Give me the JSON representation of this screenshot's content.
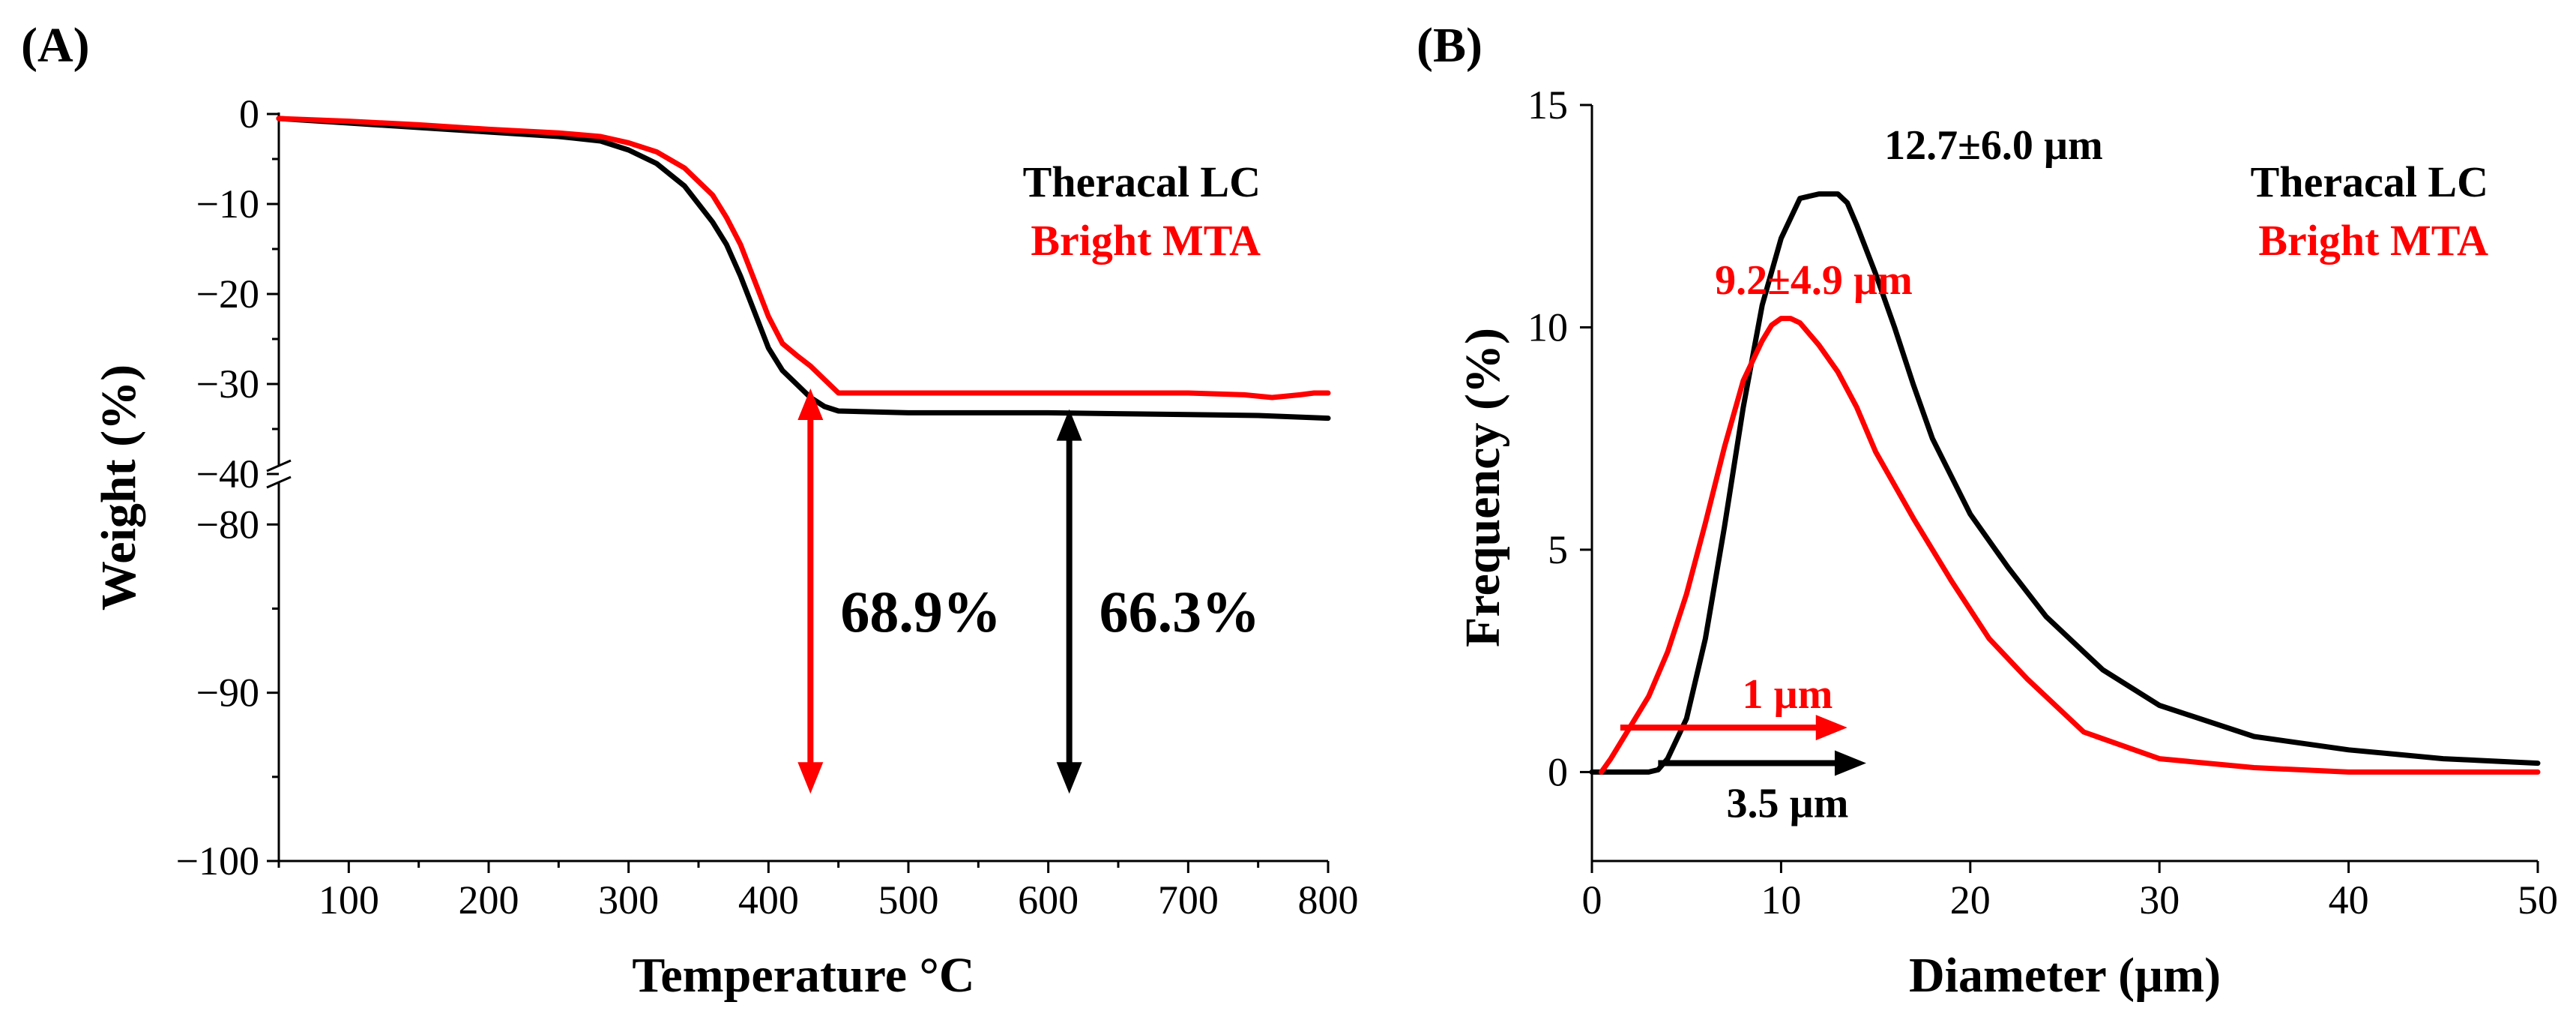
{
  "chart_data": [
    {
      "panel_label": "(A)",
      "type": "line",
      "xlabel": "Temperature °C",
      "ylabel": "Weight (%)",
      "xlim": [
        50,
        800
      ],
      "x_ticks": [
        100,
        200,
        300,
        400,
        500,
        600,
        700,
        800
      ],
      "y_upper_range": [
        -40,
        0
      ],
      "y_upper_ticks": [
        0,
        -10,
        -20,
        -30,
        -40
      ],
      "y_lower_range": [
        -100,
        -77
      ],
      "y_lower_ticks": [
        -80,
        -90,
        -100
      ],
      "axis_break": true,
      "legend": [
        {
          "label": "Theracal LC",
          "color": "#000000"
        },
        {
          "label": "Bright MTA",
          "color": "#ff0000"
        }
      ],
      "series": [
        {
          "name": "Theracal LC",
          "color": "#000000",
          "x": [
            50,
            100,
            150,
            200,
            250,
            280,
            300,
            320,
            340,
            360,
            370,
            380,
            390,
            400,
            410,
            420,
            430,
            440,
            450,
            500,
            550,
            600,
            650,
            700,
            750,
            800
          ],
          "y": [
            -0.5,
            -1.0,
            -1.5,
            -2.0,
            -2.5,
            -3.0,
            -4.0,
            -5.5,
            -8.0,
            -12.0,
            -14.5,
            -18.0,
            -22.0,
            -26.0,
            -28.5,
            -30.0,
            -31.5,
            -32.5,
            -33.0,
            -33.2,
            -33.2,
            -33.2,
            -33.3,
            -33.4,
            -33.5,
            -33.8
          ]
        },
        {
          "name": "Bright MTA",
          "color": "#ff0000",
          "x": [
            50,
            100,
            150,
            200,
            250,
            280,
            300,
            320,
            340,
            360,
            370,
            380,
            390,
            400,
            410,
            420,
            430,
            440,
            450,
            500,
            550,
            600,
            650,
            700,
            740,
            760,
            780,
            790,
            800
          ],
          "y": [
            -0.5,
            -0.8,
            -1.2,
            -1.7,
            -2.1,
            -2.5,
            -3.2,
            -4.2,
            -6.0,
            -9.0,
            -11.5,
            -14.5,
            -18.5,
            -22.5,
            -25.5,
            -26.8,
            -28.0,
            -29.5,
            -31.0,
            -31.0,
            -31.0,
            -31.0,
            -31.0,
            -31.0,
            -31.2,
            -31.5,
            -31.2,
            -31.0,
            -31.0
          ]
        }
      ],
      "annotations": [
        {
          "text": "68.9%",
          "color": "#ff0000",
          "x": 430,
          "y_from": -30.5,
          "y_to": -96
        },
        {
          "text": "66.3%",
          "color": "#000000",
          "x": 615,
          "y_from": -32.8,
          "y_to": -96
        }
      ]
    },
    {
      "panel_label": "(B)",
      "type": "line",
      "xlabel": "Diameter (µm)",
      "ylabel": "Frequency (%)",
      "xlim": [
        0,
        50
      ],
      "ylim": [
        -2,
        15
      ],
      "x_ticks": [
        0,
        10,
        20,
        30,
        40,
        50
      ],
      "y_ticks": [
        0,
        5,
        10,
        15
      ],
      "legend": [
        {
          "label": "Theracal LC",
          "color": "#000000"
        },
        {
          "label": "Bright MTA",
          "color": "#ff0000"
        }
      ],
      "series": [
        {
          "name": "Theracal LC",
          "color": "#000000",
          "x": [
            0,
            3.0,
            3.5,
            4.0,
            5.0,
            6.0,
            7.0,
            8.0,
            9.0,
            10.0,
            11.0,
            12.0,
            13.0,
            13.5,
            14.0,
            15.0,
            16.0,
            17.0,
            18.0,
            20.0,
            22.0,
            24.0,
            27.0,
            30.0,
            35.0,
            40.0,
            45.0,
            50.0
          ],
          "y": [
            0,
            0,
            0.05,
            0.3,
            1.2,
            3.0,
            5.5,
            8.2,
            10.5,
            12.0,
            12.9,
            13.0,
            13.0,
            12.8,
            12.3,
            11.2,
            10.0,
            8.7,
            7.5,
            5.8,
            4.6,
            3.5,
            2.3,
            1.5,
            0.8,
            0.5,
            0.3,
            0.2
          ]
        },
        {
          "name": "Bright MTA",
          "color": "#ff0000",
          "x": [
            0.5,
            1.0,
            2.0,
            3.0,
            4.0,
            5.0,
            6.0,
            7.0,
            8.0,
            9.0,
            9.5,
            10.0,
            10.5,
            11.0,
            12.0,
            13.0,
            14.0,
            15.0,
            17.0,
            19.0,
            21.0,
            23.0,
            26.0,
            30.0,
            35.0,
            40.0,
            45.0,
            50.0
          ],
          "y": [
            0,
            0.3,
            1.0,
            1.7,
            2.7,
            4.0,
            5.6,
            7.3,
            8.8,
            9.7,
            10.05,
            10.2,
            10.2,
            10.1,
            9.6,
            9.0,
            8.2,
            7.2,
            5.7,
            4.3,
            3.0,
            2.1,
            0.9,
            0.3,
            0.1,
            0.0,
            0.0,
            0.0
          ]
        }
      ],
      "size_labels": [
        {
          "text": "12.7±6.0 µm",
          "color": "#000000"
        },
        {
          "text": "9.2±4.9 µm",
          "color": "#ff0000"
        }
      ],
      "arrows": [
        {
          "text": "1 µm",
          "color": "#ff0000",
          "x_from": 1.5,
          "x_to": 13.5,
          "y": 1.0
        },
        {
          "text": "3.5 µm",
          "color": "#000000",
          "x_from": 3.5,
          "x_to": 14.5,
          "y": 0.2
        }
      ]
    }
  ]
}
